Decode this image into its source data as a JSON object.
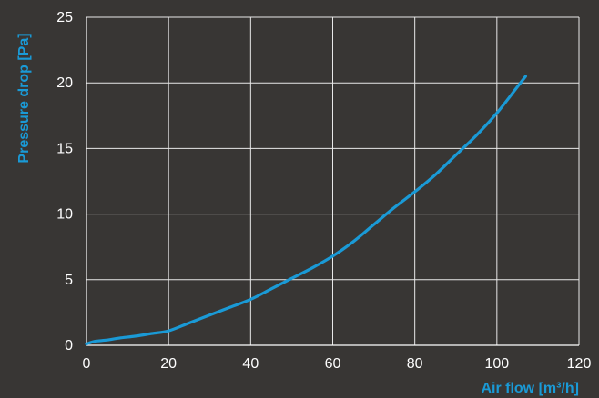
{
  "chart_data": {
    "type": "line",
    "title": "",
    "xlabel": "Air flow [m³/h]",
    "ylabel": "Pressure drop [Pa]",
    "xlim": [
      0,
      120
    ],
    "ylim": [
      0,
      25
    ],
    "xticks": [
      0,
      20,
      40,
      60,
      80,
      100,
      120
    ],
    "yticks": [
      0,
      5,
      10,
      15,
      20,
      25
    ],
    "xtick_labels": [
      "0",
      "20",
      "40",
      "60",
      "80",
      "100",
      "120"
    ],
    "ytick_labels": [
      "0",
      "5",
      "10",
      "15",
      "20",
      "25"
    ],
    "grid": true,
    "legend": "none",
    "colors": {
      "background": "#383634",
      "series": "#1a9ad6",
      "grid": "#e8e8e8",
      "text": "#ffffff"
    },
    "series": [
      {
        "x": [
          0,
          2,
          5,
          8,
          12,
          16,
          20,
          25,
          30,
          35,
          40,
          45,
          50,
          55,
          60,
          65,
          70,
          75,
          80,
          85,
          90,
          95,
          100,
          105,
          107
        ],
        "y": [
          0.1,
          0.3,
          0.4,
          0.55,
          0.7,
          0.9,
          1.1,
          1.7,
          2.3,
          2.9,
          3.5,
          4.3,
          5.1,
          5.9,
          6.8,
          7.9,
          9.2,
          10.5,
          11.7,
          13.0,
          14.5,
          16.0,
          17.7,
          19.7,
          20.5
        ]
      }
    ]
  }
}
